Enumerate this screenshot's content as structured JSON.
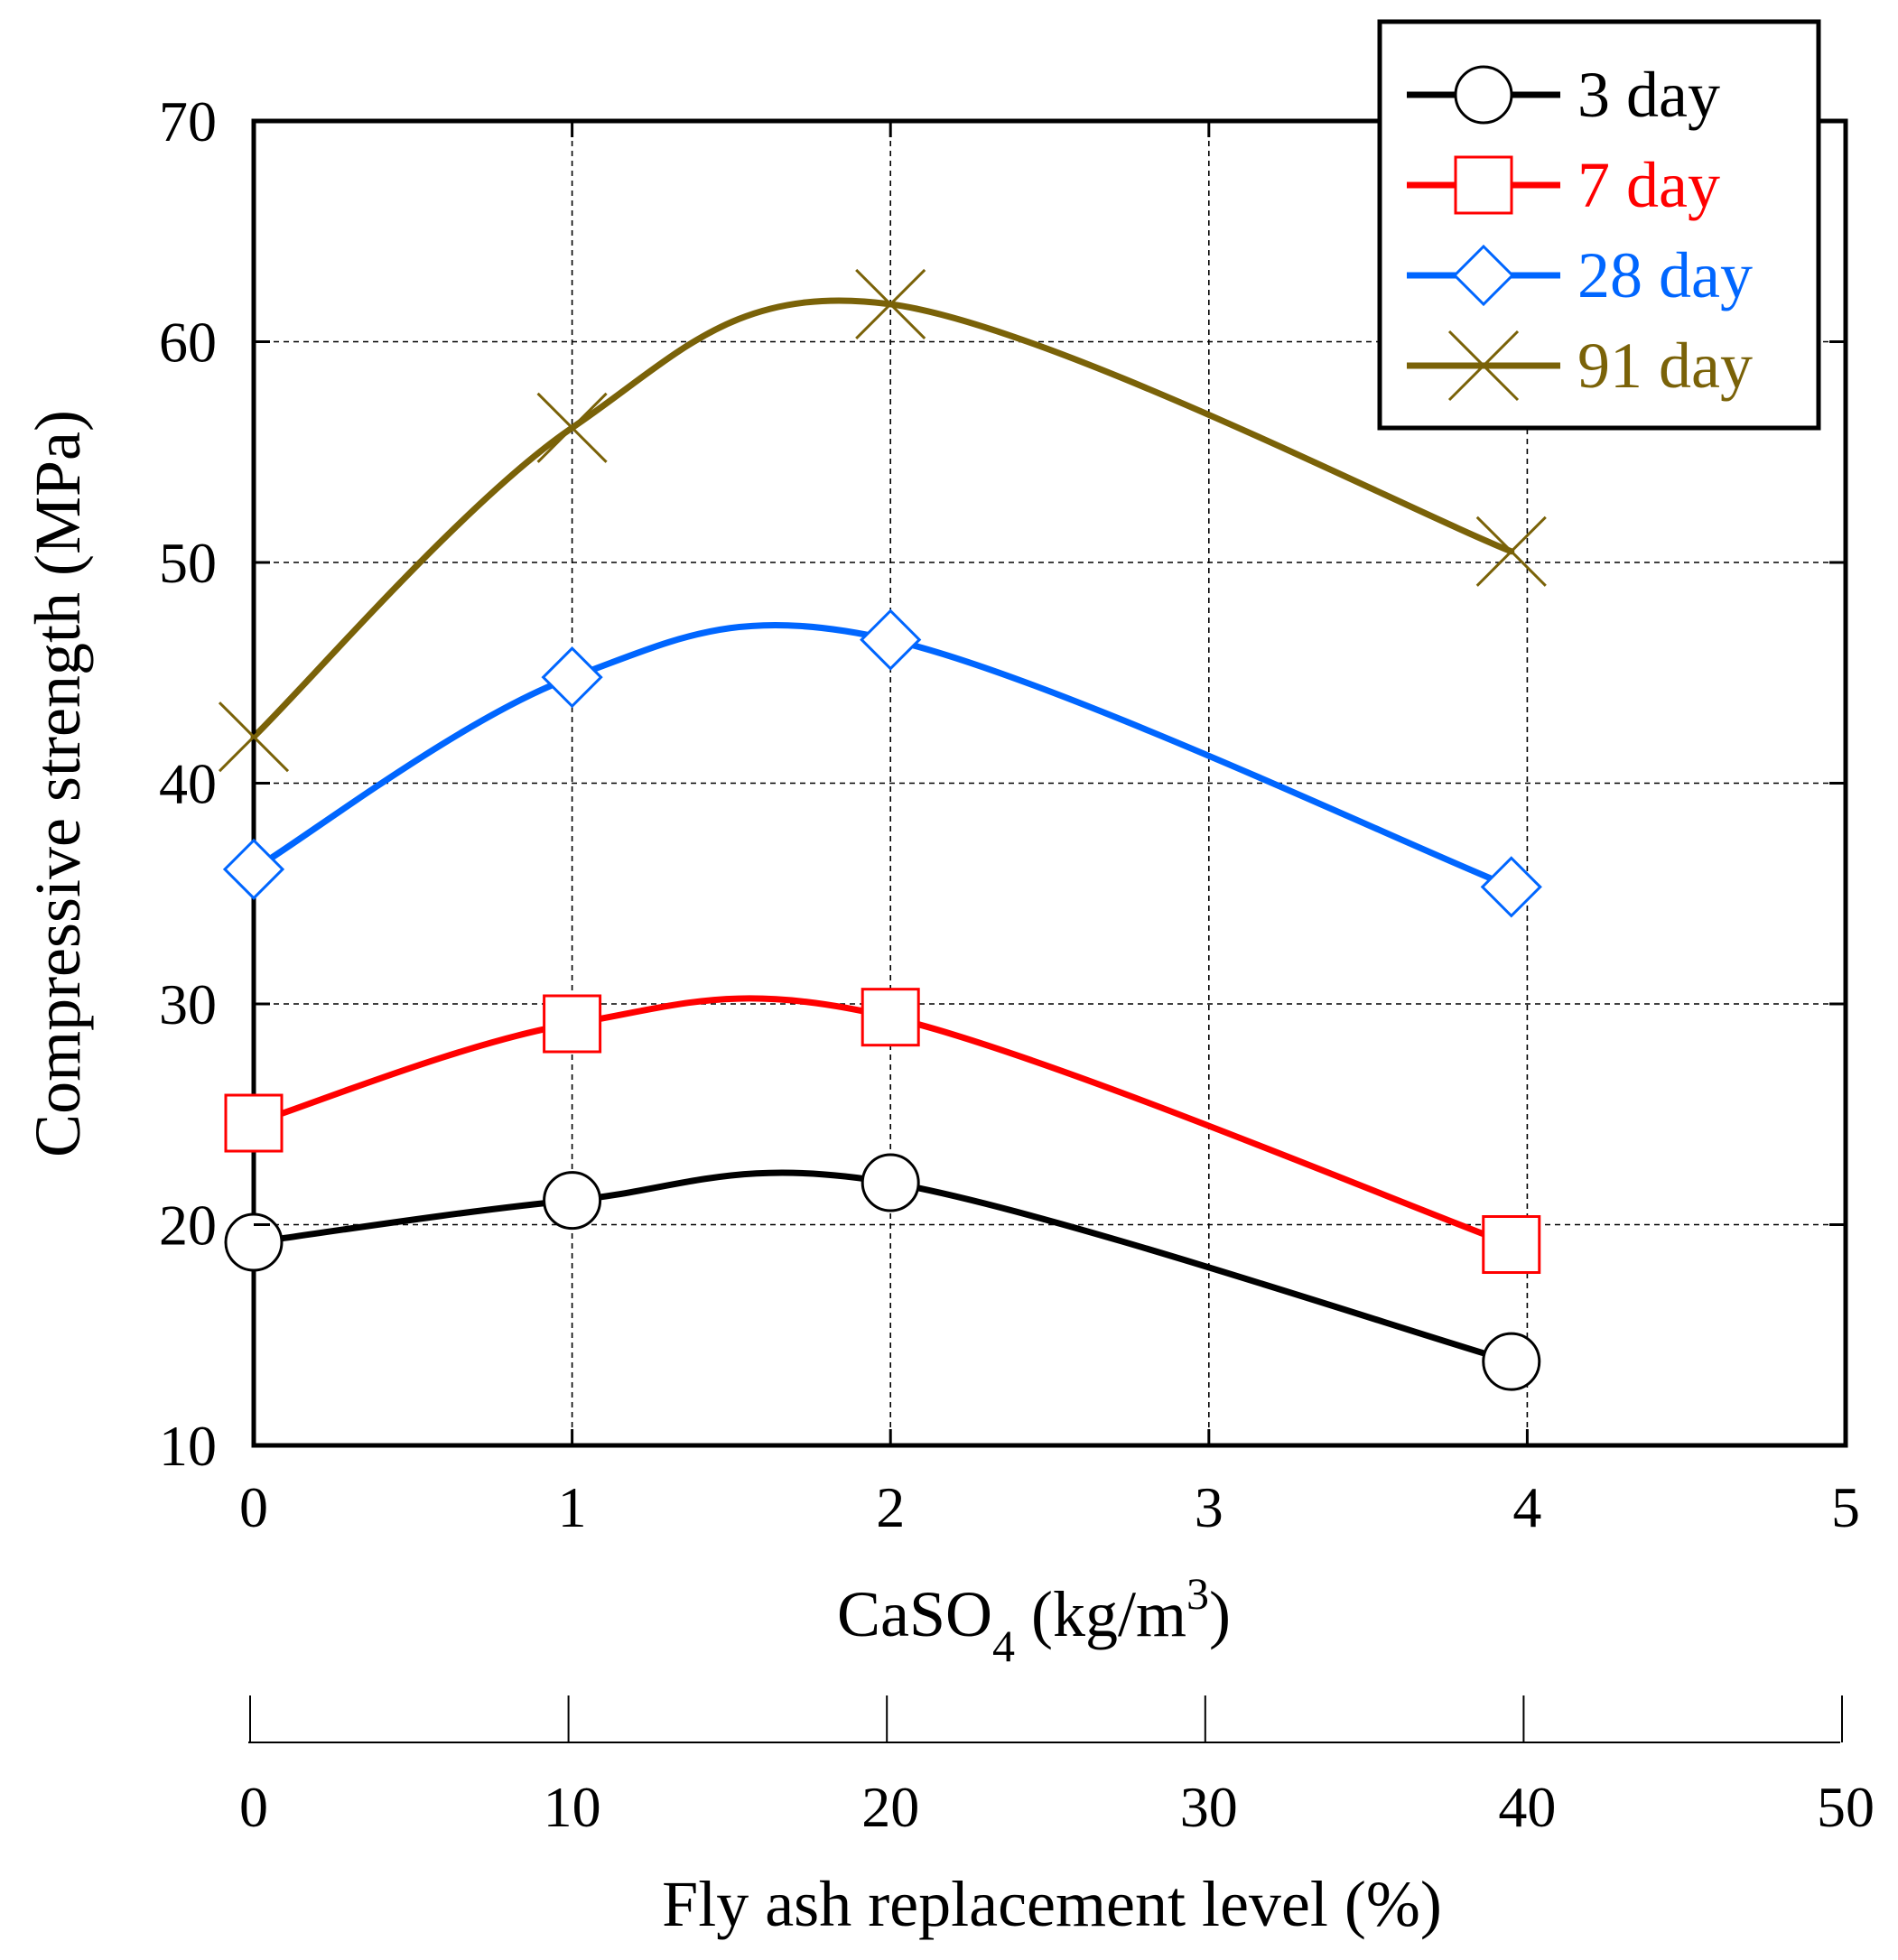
{
  "chart_data": {
    "type": "line",
    "title": "",
    "xlabel": {
      "main": "CaSO",
      "subscript": "4",
      "unit_open": " (kg/m",
      "superscript": "3",
      "unit_close": ")"
    },
    "x2label": "Fly ash replacement level (%)",
    "ylabel": "Compressive strength (MPa)",
    "xlim": [
      0,
      5
    ],
    "ylim": [
      10,
      70
    ],
    "x_ticks": [
      "0",
      "1",
      "2",
      "3",
      "4",
      "5"
    ],
    "x2_ticks": [
      "0",
      "10",
      "20",
      "30",
      "40",
      "50"
    ],
    "y_ticks": [
      "10",
      "20",
      "30",
      "40",
      "50",
      "60",
      "70"
    ],
    "grid": true,
    "legend_position": "top-right",
    "series": [
      {
        "name": "3 day",
        "color": "#000000",
        "marker": "circle",
        "x": [
          0,
          1,
          2,
          3.95
        ],
        "y": [
          19.2,
          21.1,
          21.9,
          13.8
        ]
      },
      {
        "name": "7 day",
        "color": "#ff0000",
        "marker": "square",
        "x": [
          0,
          1,
          2,
          3.95
        ],
        "y": [
          24.6,
          29.1,
          29.4,
          19.1
        ]
      },
      {
        "name": "28 day",
        "color": "#0066ff",
        "marker": "diamond",
        "x": [
          0,
          1,
          2,
          3.95
        ],
        "y": [
          36.1,
          44.8,
          46.5,
          35.3
        ]
      },
      {
        "name": "91 day",
        "color": "#7a6208",
        "marker": "x",
        "x": [
          0,
          1,
          2,
          3.95
        ],
        "y": [
          42.1,
          56.1,
          61.7,
          50.5
        ]
      }
    ]
  }
}
